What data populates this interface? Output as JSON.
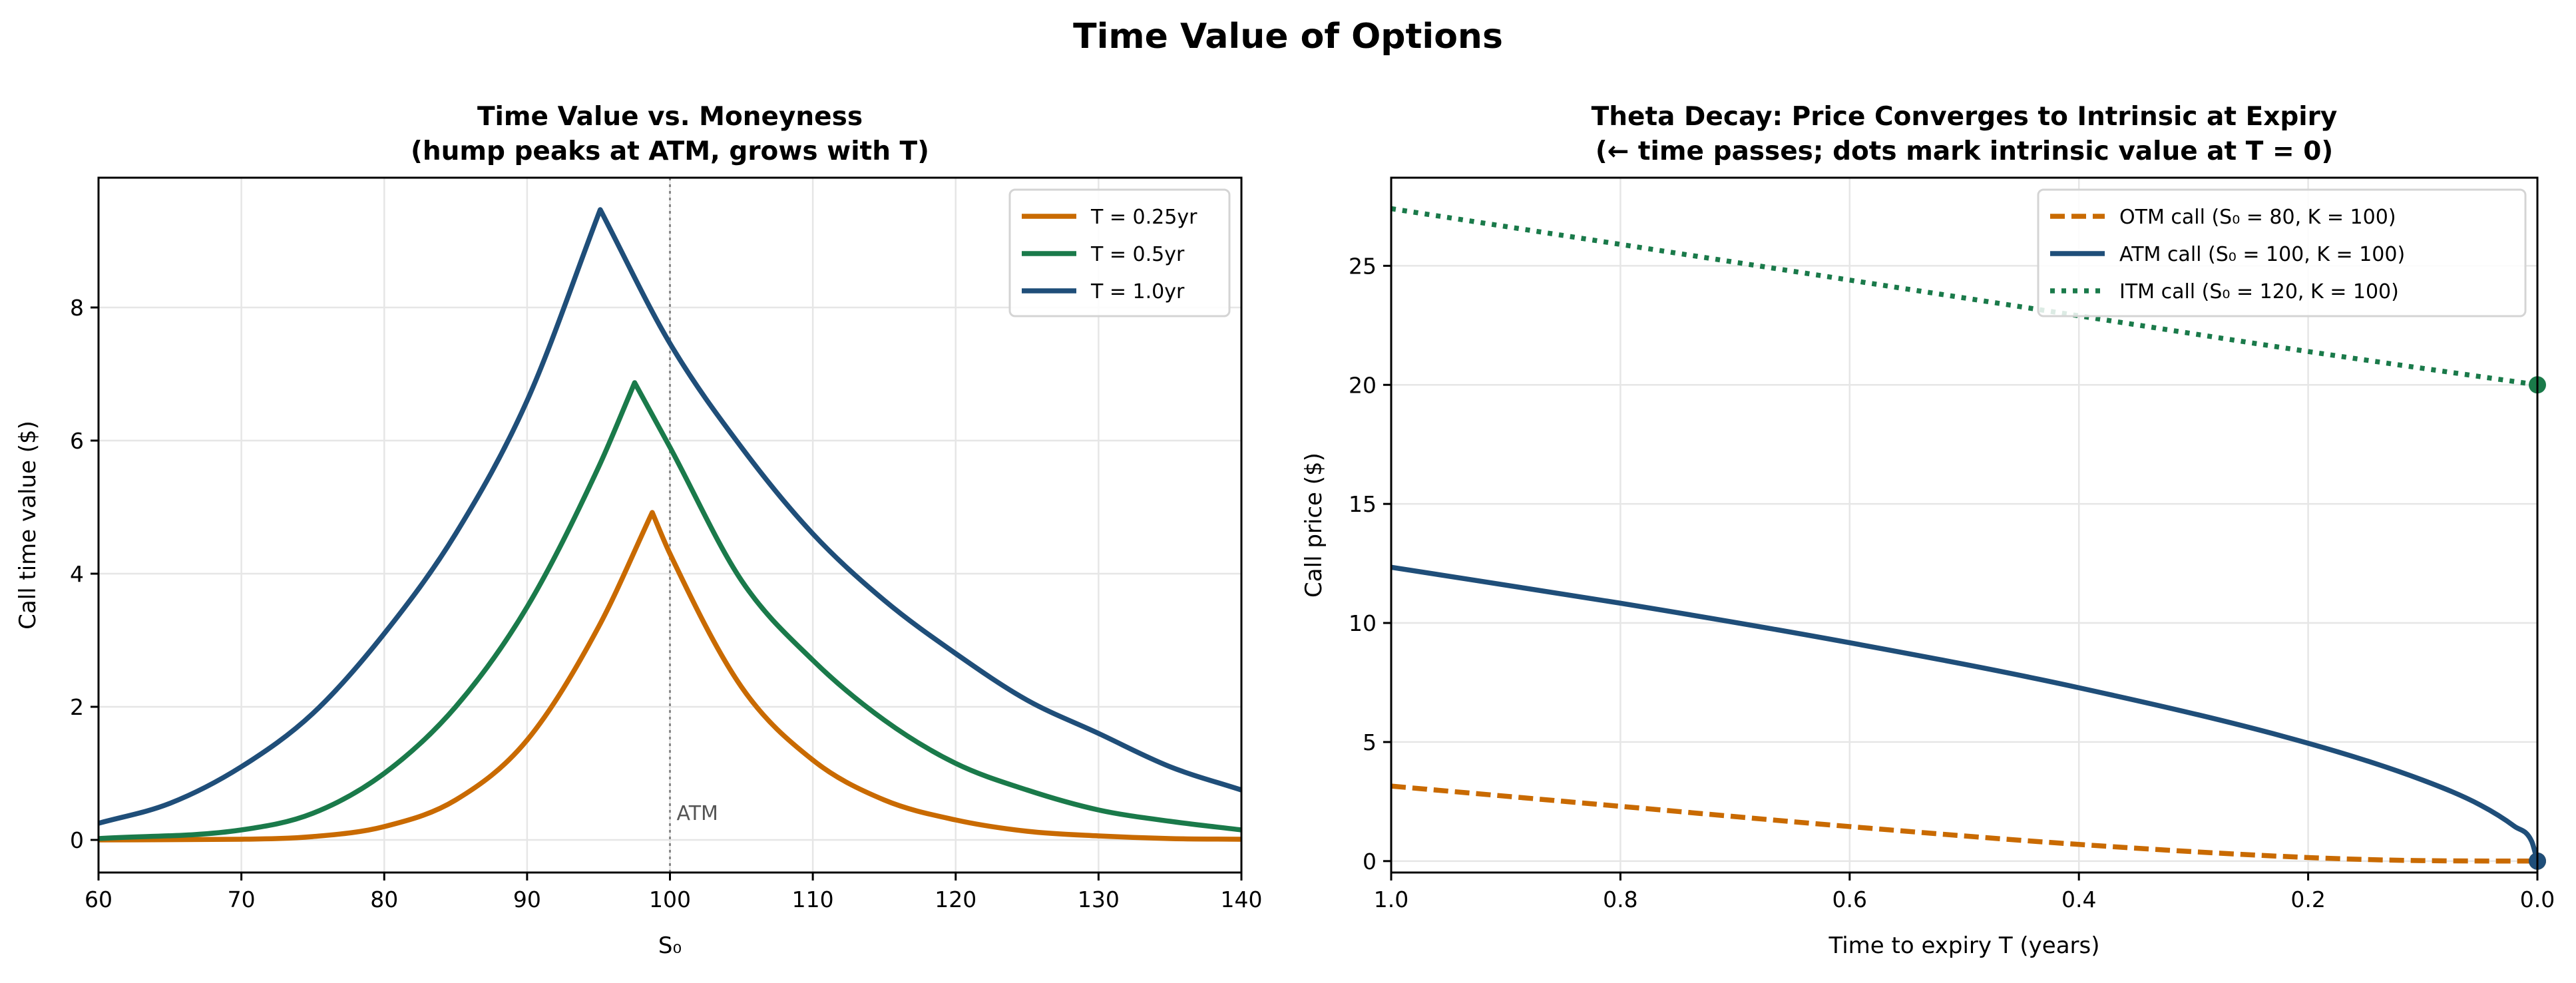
{
  "figure_title": "Time Value of Options",
  "colors": {
    "orange": "#c96a00",
    "green": "#1a7a4a",
    "blue": "#1f4e79",
    "grid": "#e6e6e6",
    "atm_line": "#888888"
  },
  "chart_data": [
    {
      "type": "line",
      "title_line1": "Time Value vs. Moneyness",
      "title_line2": "(hump peaks at ATM, grows with T)",
      "xlabel": "S₀",
      "ylabel": "Call time value ($)",
      "xlim": [
        60,
        140
      ],
      "ylim": [
        -0.49,
        9.95
      ],
      "xticks": [
        60,
        70,
        80,
        90,
        100,
        110,
        120,
        130,
        140
      ],
      "yticks": [
        0,
        2,
        4,
        6,
        8
      ],
      "grid": true,
      "legend_placement": "upper right",
      "annotation": {
        "text": "ATM",
        "x": 100,
        "line_style": "dotted"
      },
      "series": [
        {
          "name": "T = 0.25yr",
          "color": "orange",
          "style": "solid",
          "x": [
            60,
            70,
            75,
            80,
            85,
            90,
            95,
            98.76,
            100,
            105,
            110,
            115,
            120,
            125,
            130,
            135,
            140
          ],
          "y": [
            0,
            0.01,
            0.05,
            0.2,
            0.6,
            1.5,
            3.2,
            4.92,
            4.3,
            2.3,
            1.2,
            0.6,
            0.3,
            0.13,
            0.06,
            0.02,
            0.01
          ]
        },
        {
          "name": "T = 0.5yr",
          "color": "green",
          "style": "solid",
          "x": [
            60,
            70,
            75,
            80,
            85,
            90,
            95,
            97.53,
            100,
            105,
            110,
            115,
            120,
            125,
            130,
            135,
            140
          ],
          "y": [
            0.02,
            0.15,
            0.4,
            1.0,
            2.0,
            3.5,
            5.6,
            6.87,
            5.9,
            3.9,
            2.7,
            1.8,
            1.15,
            0.75,
            0.45,
            0.28,
            0.15
          ]
        },
        {
          "name": "T = 1.0yr",
          "color": "blue",
          "style": "solid",
          "x": [
            60,
            65,
            70,
            75,
            80,
            85,
            90,
            95.12,
            100,
            105,
            110,
            115,
            120,
            125,
            130,
            135,
            140
          ],
          "y": [
            0.25,
            0.55,
            1.1,
            1.9,
            3.1,
            4.6,
            6.6,
            9.47,
            7.46,
            5.9,
            4.6,
            3.6,
            2.8,
            2.1,
            1.6,
            1.1,
            0.75
          ]
        }
      ]
    },
    {
      "type": "line",
      "title_line1": "Theta Decay: Price Converges to Intrinsic at Expiry",
      "title_line2": "(← time passes; dots mark intrinsic value at T = 0)",
      "xlabel": "Time to expiry  T (years)",
      "ylabel": "Call price ($)",
      "xlim": [
        1.0,
        0.0
      ],
      "ylim": [
        -0.48,
        28.7
      ],
      "xticks": [
        "1.0",
        "0.8",
        "0.6",
        "0.4",
        "0.2",
        "0.0"
      ],
      "yticks": [
        0,
        5,
        10,
        15,
        20,
        25
      ],
      "grid": true,
      "legend_placement": "upper right",
      "series": [
        {
          "name": "OTM call (S₀ = 80,  K = 100)",
          "color": "orange",
          "style": "dashed",
          "x": [
            1,
            0.8,
            0.6,
            0.4,
            0.2,
            0.1,
            0
          ],
          "y": [
            3.15,
            2.3,
            1.45,
            0.7,
            0.15,
            0.02,
            0
          ],
          "intrinsic_at_expiry": 0
        },
        {
          "name": "ATM call (S₀ = 100, K = 100)",
          "color": "blue",
          "style": "solid",
          "x": [
            1,
            0.8,
            0.6,
            0.4,
            0.2,
            0.1,
            0.05,
            0.02,
            0.005,
            0
          ],
          "y": [
            12.34,
            10.83,
            9.17,
            7.28,
            4.95,
            3.4,
            2.36,
            1.46,
            0.83,
            0
          ],
          "intrinsic_at_expiry": 0
        },
        {
          "name": "ITM call (S₀ = 120, K = 100)",
          "color": "green",
          "style": "dotted",
          "x": [
            1,
            0.8,
            0.6,
            0.4,
            0.2,
            0
          ],
          "y": [
            27.4,
            25.9,
            24.4,
            22.9,
            21.4,
            20
          ],
          "intrinsic_at_expiry": 20
        }
      ]
    }
  ]
}
